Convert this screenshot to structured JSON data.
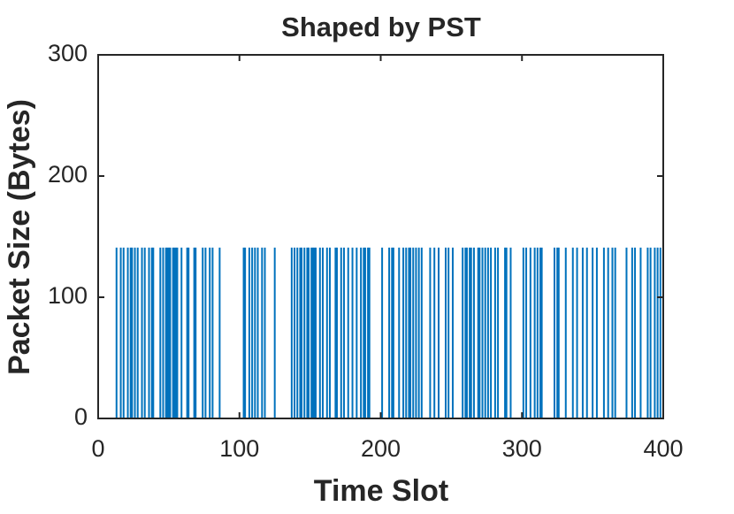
{
  "chart_data": {
    "type": "stem",
    "title": "Shaped by PST",
    "xlabel": "Time Slot",
    "ylabel": "Packet Size (Bytes)",
    "color": "#0072bd",
    "x": [
      13,
      16,
      18,
      21,
      23,
      24,
      26,
      28,
      31,
      33,
      36,
      38,
      39,
      44,
      46,
      48,
      49,
      50,
      51,
      53,
      54,
      55,
      56,
      59,
      63,
      64,
      68,
      69,
      74,
      76,
      79,
      81,
      86,
      103,
      104,
      107,
      109,
      111,
      113,
      116,
      118,
      125,
      137,
      139,
      141,
      143,
      144,
      146,
      148,
      149,
      151,
      152,
      153,
      154,
      157,
      159,
      162,
      164,
      168,
      169,
      172,
      174,
      177,
      180,
      183,
      186,
      188,
      189,
      191,
      192,
      201,
      206,
      208,
      209,
      213,
      216,
      218,
      220,
      221,
      223,
      225,
      227,
      229,
      235,
      238,
      241,
      246,
      248,
      251,
      258,
      260,
      261,
      263,
      264,
      266,
      269,
      270,
      272,
      274,
      276,
      278,
      281,
      283,
      288,
      289,
      292,
      301,
      303,
      306,
      309,
      311,
      313,
      314,
      323,
      325,
      326,
      331,
      336,
      339,
      343,
      346,
      350,
      353,
      358,
      361,
      364,
      366,
      374,
      378,
      380,
      384,
      389,
      391,
      394,
      396,
      398
    ],
    "values": [
      141,
      141,
      141,
      141,
      141,
      141,
      141,
      141,
      141,
      141,
      141,
      141,
      141,
      141,
      141,
      141,
      141,
      141,
      141,
      141,
      141,
      141,
      141,
      141,
      141,
      141,
      141,
      141,
      141,
      141,
      141,
      141,
      141,
      141,
      141,
      141,
      141,
      141,
      141,
      141,
      141,
      141,
      141,
      141,
      141,
      141,
      141,
      141,
      141,
      141,
      141,
      141,
      141,
      141,
      141,
      141,
      141,
      141,
      141,
      141,
      141,
      141,
      141,
      141,
      141,
      141,
      141,
      141,
      141,
      141,
      141,
      141,
      141,
      141,
      141,
      141,
      141,
      141,
      141,
      141,
      141,
      141,
      141,
      141,
      141,
      141,
      141,
      141,
      141,
      141,
      141,
      141,
      141,
      141,
      141,
      141,
      141,
      141,
      141,
      141,
      141,
      141,
      141,
      141,
      141,
      141,
      141,
      141,
      141,
      141,
      141,
      141,
      141,
      141,
      141,
      141,
      141,
      141,
      141,
      141,
      141,
      141,
      141,
      141,
      141,
      141,
      141,
      141,
      141,
      141,
      141,
      141,
      141,
      141,
      141,
      141
    ],
    "xlim": [
      0,
      400
    ],
    "xticks": [
      0,
      100,
      200,
      300,
      400
    ],
    "ylim": [
      0,
      300
    ],
    "yticks": [
      0,
      100,
      200,
      300
    ]
  }
}
